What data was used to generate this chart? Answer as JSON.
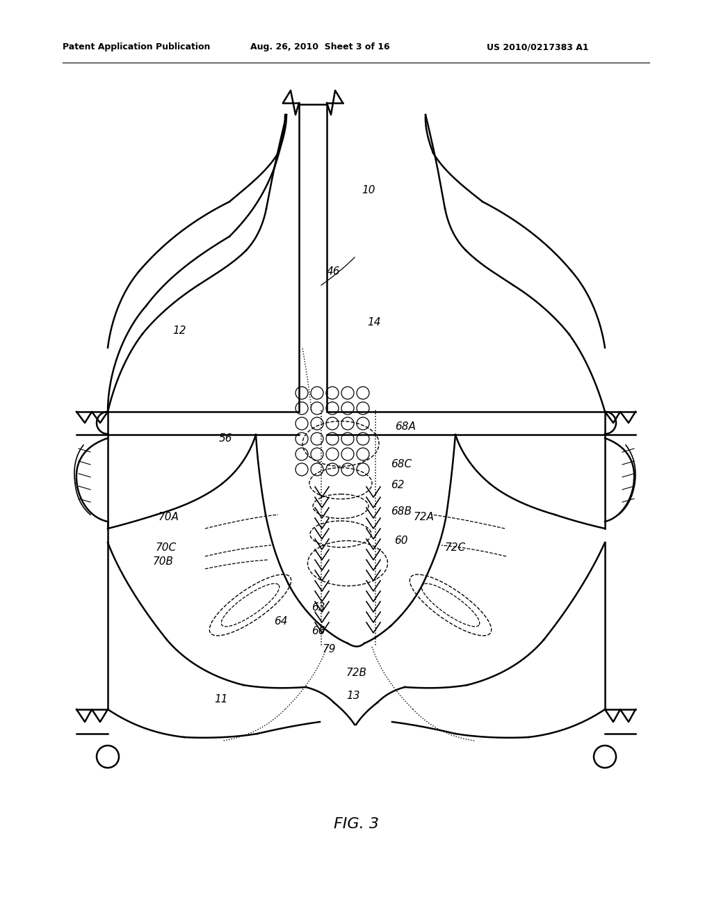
{
  "title": "FIG. 3",
  "header_left": "Patent Application Publication",
  "header_mid": "Aug. 26, 2010  Sheet 3 of 16",
  "header_right": "US 2010/0217383 A1",
  "bg_color": "#ffffff",
  "line_color": "#000000",
  "label_color": "#000000"
}
